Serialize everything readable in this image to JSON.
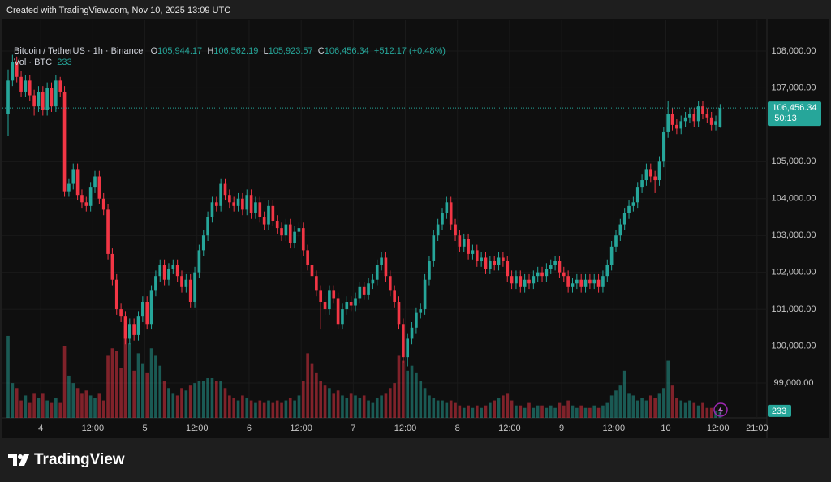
{
  "header": {
    "created": "Created with TradingView.com, Nov 10, 2025 13:09 UTC"
  },
  "footer": {
    "brand": "TradingView"
  },
  "chart_data": {
    "type": "candlestick",
    "legend": {
      "symbol": "Bitcoin / TetherUS · 1h · Binance",
      "o_label": "O",
      "o": "105,944.17",
      "h_label": "H",
      "h": "106,562.19",
      "l_label": "L",
      "l": "105,923.57",
      "c_label": "C",
      "c": "106,456.34",
      "change": "+512.17 (+0.48%)",
      "vol": "Vol · BTC",
      "vol_value": "233"
    },
    "price_label": "106,456.34",
    "countdown": "50:13",
    "volume_label": "233",
    "up_color": "#26a69a",
    "down_color": "#f23645",
    "ylim": [
      98053,
      108836
    ],
    "xlim": [
      -1.31,
      174.77
    ],
    "volume_ylim": [
      0,
      16000
    ],
    "yticks": [
      {
        "value": 99000,
        "label": "99,000.00"
      },
      {
        "value": 100000,
        "label": "100,000.00"
      },
      {
        "value": 101000,
        "label": "101,000.00"
      },
      {
        "value": 102000,
        "label": "102,000.00"
      },
      {
        "value": 103000,
        "label": "103,000.00"
      },
      {
        "value": 104000,
        "label": "104,000.00"
      },
      {
        "value": 105000,
        "label": "105,000.00"
      },
      {
        "value": 107000,
        "label": "107,000.00"
      },
      {
        "value": 108000,
        "label": "108,000.00"
      }
    ],
    "xticks": [
      {
        "value": 7.5,
        "label": "4"
      },
      {
        "value": 19.5,
        "label": "12:00"
      },
      {
        "value": 31.5,
        "label": "5"
      },
      {
        "value": 43.5,
        "label": "12:00"
      },
      {
        "value": 55.5,
        "label": "6"
      },
      {
        "value": 67.5,
        "label": "12:00"
      },
      {
        "value": 79.5,
        "label": "7"
      },
      {
        "value": 91.5,
        "label": "12:00"
      },
      {
        "value": 103.5,
        "label": "8"
      },
      {
        "value": 115.5,
        "label": "12:00"
      },
      {
        "value": 127.5,
        "label": "9"
      },
      {
        "value": 139.5,
        "label": "12:00"
      },
      {
        "value": 151.5,
        "label": "10"
      },
      {
        "value": 163.5,
        "label": "12:00"
      },
      {
        "value": 172.5,
        "label": "21:00"
      }
    ],
    "candles": [
      [
        106300,
        107500,
        105700,
        107200
      ],
      [
        107200,
        107900,
        107050,
        107700
      ],
      [
        107700,
        107850,
        107150,
        107300
      ],
      [
        107300,
        107450,
        106750,
        106900
      ],
      [
        106900,
        107350,
        106750,
        107200
      ],
      [
        107200,
        107350,
        106650,
        106800
      ],
      [
        106800,
        106950,
        106250,
        106500
      ],
      [
        106500,
        107050,
        106350,
        106900
      ],
      [
        106900,
        107050,
        106250,
        106400
      ],
      [
        106400,
        107150,
        106250,
        107000
      ],
      [
        107000,
        107150,
        106350,
        106500
      ],
      [
        106500,
        107350,
        106350,
        107200
      ],
      [
        107200,
        107300,
        106750,
        106900
      ],
      [
        106900,
        107050,
        104050,
        104200
      ],
      [
        104200,
        104550,
        104050,
        104400
      ],
      [
        104400,
        104950,
        104250,
        104800
      ],
      [
        104800,
        104950,
        103950,
        104100
      ],
      [
        104100,
        104250,
        103750,
        103900
      ],
      [
        103900,
        104050,
        103650,
        103800
      ],
      [
        103800,
        104450,
        103650,
        104300
      ],
      [
        104300,
        104750,
        104150,
        104600
      ],
      [
        104600,
        104750,
        103850,
        104000
      ],
      [
        104000,
        104150,
        103550,
        103700
      ],
      [
        103700,
        103850,
        102350,
        102500
      ],
      [
        102500,
        102650,
        101650,
        101800
      ],
      [
        101800,
        101950,
        100850,
        101000
      ],
      [
        101000,
        101150,
        100650,
        100800
      ],
      [
        100800,
        100950,
        100050,
        100200
      ],
      [
        100200,
        100750,
        100050,
        100600
      ],
      [
        100600,
        100750,
        100150,
        100300
      ],
      [
        100300,
        100950,
        100150,
        100800
      ],
      [
        100800,
        101350,
        100650,
        101200
      ],
      [
        101200,
        101350,
        100450,
        100600
      ],
      [
        100600,
        101650,
        100450,
        101500
      ],
      [
        101500,
        102050,
        101350,
        101900
      ],
      [
        101900,
        102350,
        101750,
        102200
      ],
      [
        102200,
        102350,
        101650,
        101800
      ],
      [
        101800,
        102250,
        101650,
        102100
      ],
      [
        102100,
        102350,
        101950,
        102200
      ],
      [
        102200,
        102350,
        101750,
        101900
      ],
      [
        101900,
        102050,
        101450,
        101600
      ],
      [
        101600,
        101950,
        101450,
        101800
      ],
      [
        101800,
        101950,
        101050,
        101200
      ],
      [
        101200,
        102150,
        101050,
        102000
      ],
      [
        102000,
        102750,
        101850,
        102600
      ],
      [
        102600,
        103150,
        102450,
        103000
      ],
      [
        103000,
        103650,
        102850,
        103500
      ],
      [
        103500,
        104050,
        103350,
        103900
      ],
      [
        103900,
        104050,
        103650,
        103800
      ],
      [
        103800,
        104550,
        103650,
        104400
      ],
      [
        104400,
        104550,
        103950,
        104100
      ],
      [
        104100,
        104250,
        103750,
        103900
      ],
      [
        103900,
        104050,
        103650,
        103800
      ],
      [
        103800,
        104150,
        103650,
        104000
      ],
      [
        104000,
        104150,
        103550,
        103700
      ],
      [
        103700,
        104250,
        103550,
        104100
      ],
      [
        104100,
        104250,
        103450,
        103600
      ],
      [
        103600,
        104050,
        103450,
        103900
      ],
      [
        103900,
        104050,
        103350,
        103500
      ],
      [
        103500,
        103650,
        103150,
        103300
      ],
      [
        103300,
        103950,
        103150,
        103800
      ],
      [
        103800,
        103950,
        103250,
        103400
      ],
      [
        103400,
        103550,
        103050,
        103200
      ],
      [
        103200,
        103350,
        102850,
        103000
      ],
      [
        103000,
        103450,
        102850,
        103300
      ],
      [
        103300,
        103450,
        102650,
        102800
      ],
      [
        102800,
        103250,
        102650,
        103100
      ],
      [
        103100,
        103350,
        102950,
        103200
      ],
      [
        103200,
        103350,
        102450,
        102600
      ],
      [
        102600,
        102750,
        102050,
        102200
      ],
      [
        102200,
        102350,
        101750,
        101900
      ],
      [
        101900,
        102050,
        101350,
        101500
      ],
      [
        101500,
        101650,
        100450,
        101200
      ],
      [
        101200,
        101350,
        100850,
        101000
      ],
      [
        101000,
        101650,
        100850,
        101500
      ],
      [
        101500,
        101650,
        101150,
        101300
      ],
      [
        101300,
        101450,
        100450,
        100600
      ],
      [
        100600,
        101150,
        100450,
        101000
      ],
      [
        101000,
        101350,
        100850,
        101200
      ],
      [
        101200,
        101350,
        100950,
        101100
      ],
      [
        101100,
        101450,
        100950,
        101300
      ],
      [
        101300,
        101750,
        101150,
        101600
      ],
      [
        101600,
        101750,
        101250,
        101400
      ],
      [
        101400,
        101850,
        101250,
        101700
      ],
      [
        101700,
        101950,
        101550,
        101800
      ],
      [
        101800,
        102350,
        101650,
        102200
      ],
      [
        102200,
        102550,
        102050,
        102400
      ],
      [
        102400,
        102550,
        101750,
        101900
      ],
      [
        101900,
        102050,
        101350,
        101500
      ],
      [
        101500,
        101650,
        101050,
        101200
      ],
      [
        101200,
        101350,
        100450,
        100600
      ],
      [
        100600,
        100750,
        99550,
        99700
      ],
      [
        99700,
        100350,
        99450,
        100200
      ],
      [
        100200,
        100650,
        100050,
        100500
      ],
      [
        100500,
        101050,
        100350,
        100900
      ],
      [
        100900,
        101150,
        100750,
        101000
      ],
      [
        101000,
        101950,
        100850,
        101800
      ],
      [
        101800,
        102450,
        101650,
        102300
      ],
      [
        102300,
        103150,
        102150,
        103000
      ],
      [
        103000,
        103450,
        102850,
        103300
      ],
      [
        103300,
        103750,
        103150,
        103600
      ],
      [
        103600,
        104050,
        103450,
        103900
      ],
      [
        103900,
        104050,
        103150,
        103300
      ],
      [
        103300,
        103450,
        102850,
        103000
      ],
      [
        103000,
        103150,
        102550,
        102700
      ],
      [
        102700,
        103050,
        102550,
        102900
      ],
      [
        102900,
        103050,
        102350,
        102500
      ],
      [
        102500,
        102750,
        102350,
        102600
      ],
      [
        102600,
        102750,
        102150,
        102300
      ],
      [
        102300,
        102550,
        102150,
        102400
      ],
      [
        102400,
        102550,
        101950,
        102100
      ],
      [
        102100,
        102450,
        101950,
        102300
      ],
      [
        102300,
        102450,
        102050,
        102200
      ],
      [
        102200,
        102550,
        102050,
        102400
      ],
      [
        102400,
        102550,
        102150,
        102300
      ],
      [
        102300,
        102450,
        101750,
        101900
      ],
      [
        101900,
        102050,
        101550,
        101700
      ],
      [
        101700,
        102050,
        101550,
        101900
      ],
      [
        101900,
        102050,
        101450,
        101600
      ],
      [
        101600,
        101950,
        101450,
        101800
      ],
      [
        101800,
        101950,
        101550,
        101700
      ],
      [
        101700,
        102050,
        101550,
        101900
      ],
      [
        101900,
        102150,
        101750,
        102000
      ],
      [
        102000,
        102150,
        101750,
        101900
      ],
      [
        101900,
        102250,
        101750,
        102100
      ],
      [
        102100,
        102350,
        101950,
        102200
      ],
      [
        102200,
        102450,
        102050,
        102300
      ],
      [
        102300,
        102450,
        101850,
        102000
      ],
      [
        102000,
        102150,
        101750,
        101900
      ],
      [
        101900,
        102050,
        101450,
        101600
      ],
      [
        101600,
        101850,
        101450,
        101700
      ],
      [
        101700,
        101950,
        101550,
        101800
      ],
      [
        101800,
        101950,
        101450,
        101600
      ],
      [
        101600,
        101950,
        101450,
        101800
      ],
      [
        101800,
        101950,
        101550,
        101700
      ],
      [
        101700,
        101950,
        101550,
        101800
      ],
      [
        101800,
        101950,
        101450,
        101600
      ],
      [
        101600,
        102050,
        101450,
        101900
      ],
      [
        101900,
        102350,
        101750,
        102200
      ],
      [
        102200,
        102850,
        102050,
        102700
      ],
      [
        102700,
        103150,
        102550,
        103000
      ],
      [
        103000,
        103450,
        102850,
        103300
      ],
      [
        103300,
        103750,
        103150,
        103600
      ],
      [
        103600,
        103950,
        103450,
        103800
      ],
      [
        103800,
        104050,
        103650,
        103900
      ],
      [
        103900,
        104450,
        103750,
        104300
      ],
      [
        104300,
        104650,
        104150,
        104500
      ],
      [
        104500,
        104950,
        104350,
        104800
      ],
      [
        104800,
        104950,
        104450,
        104600
      ],
      [
        104600,
        104750,
        104150,
        104500
      ],
      [
        104500,
        105150,
        104350,
        105000
      ],
      [
        105000,
        105950,
        104850,
        105800
      ],
      [
        105800,
        106650,
        105650,
        106300
      ],
      [
        106300,
        106450,
        105850,
        106000
      ],
      [
        106000,
        106150,
        105750,
        105900
      ],
      [
        105900,
        106250,
        105750,
        106100
      ],
      [
        106100,
        106350,
        105950,
        106200
      ],
      [
        106200,
        106450,
        106050,
        106300
      ],
      [
        106300,
        106450,
        105950,
        106100
      ],
      [
        106100,
        106650,
        105950,
        106500
      ],
      [
        106500,
        106650,
        106150,
        106300
      ],
      [
        106300,
        106450,
        106050,
        106200
      ],
      [
        106200,
        106350,
        105850,
        106000
      ],
      [
        106000,
        106250,
        105850,
        106100
      ],
      [
        105944.17,
        106562.19,
        105923.57,
        106456.34
      ]
    ],
    "volumes": [
      3300,
      1400,
      1200,
      700,
      900,
      600,
      1000,
      800,
      1000,
      700,
      600,
      800,
      600,
      2900,
      1700,
      1400,
      1200,
      1000,
      1100,
      900,
      800,
      1000,
      700,
      2500,
      2800,
      2700,
      2000,
      3700,
      3000,
      1900,
      2600,
      2200,
      1800,
      2800,
      2500,
      2100,
      1500,
      1200,
      1000,
      900,
      1200,
      1100,
      1300,
      1400,
      1500,
      1500,
      1600,
      1600,
      1500,
      1500,
      1200,
      900,
      800,
      700,
      900,
      800,
      700,
      600,
      700,
      600,
      700,
      600,
      700,
      600,
      700,
      800,
      700,
      900,
      1500,
      2600,
      2200,
      1800,
      1500,
      1300,
      1200,
      1000,
      1100,
      900,
      800,
      1000,
      900,
      800,
      900,
      700,
      600,
      800,
      900,
      1000,
      1200,
      1400,
      2500,
      2300,
      1900,
      2100,
      1800,
      1500,
      1200,
      900,
      800,
      700,
      700,
      600,
      700,
      600,
      500,
      400,
      500,
      400,
      500,
      400,
      500,
      600,
      700,
      800,
      900,
      1000,
      700,
      500,
      500,
      400,
      600,
      400,
      500,
      500,
      400,
      500,
      400,
      600,
      500,
      700,
      500,
      400,
      500,
      400,
      400,
      500,
      400,
      500,
      600,
      900,
      1100,
      1300,
      1900,
      1000,
      900,
      700,
      800,
      700,
      900,
      800,
      1000,
      1200,
      2300,
      1300,
      800,
      700,
      600,
      700,
      600,
      500,
      600,
      400,
      400,
      300,
      233
    ]
  }
}
